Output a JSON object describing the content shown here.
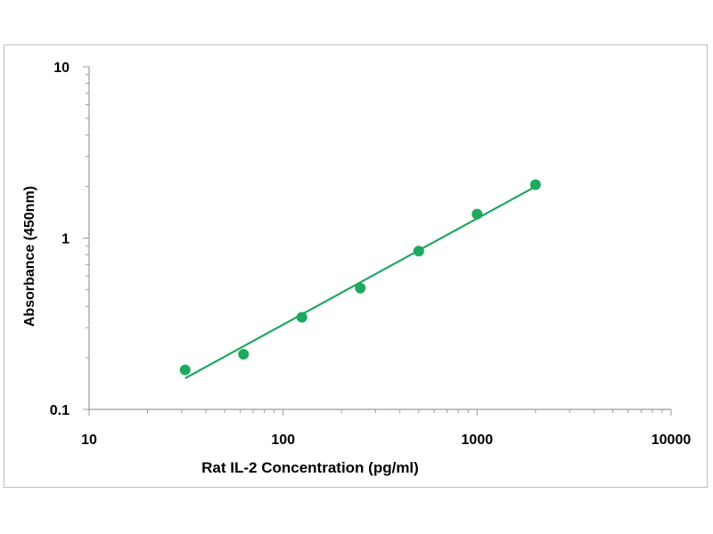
{
  "chart_data": {
    "type": "scatter",
    "title": "",
    "xlabel": "Rat IL-2 Concentration (pg/ml)",
    "ylabel": "Absorbance (450nm)",
    "x_scale": "log",
    "y_scale": "log",
    "xlim": [
      10,
      10000
    ],
    "ylim": [
      0.1,
      10
    ],
    "x_ticks": [
      "10",
      "100",
      "1000",
      "10000"
    ],
    "y_ticks": [
      "0.1",
      "1",
      "10"
    ],
    "grid": false,
    "legend": "none",
    "marker_color": "#1fa85f",
    "line_color": "#1fa85f",
    "points": {
      "x": [
        31.25,
        62.5,
        125,
        250,
        500,
        1000,
        2000
      ],
      "y": [
        0.17,
        0.21,
        0.345,
        0.51,
        0.84,
        1.38,
        2.05
      ]
    },
    "fit_line": {
      "x": [
        31.25,
        2000
      ],
      "y": [
        0.152,
        2.0
      ]
    }
  }
}
